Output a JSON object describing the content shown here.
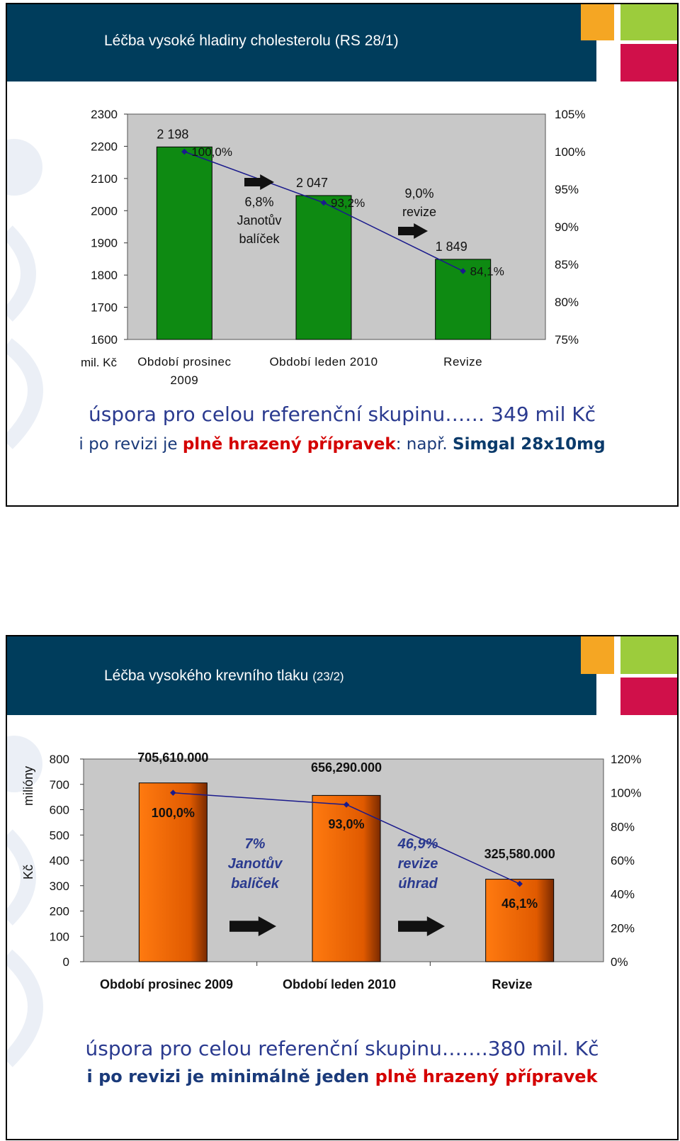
{
  "colors": {
    "header": "#003d5c",
    "tile_orange": "#f5a623",
    "tile_green": "#9ccc3c",
    "tile_red": "#d0104a",
    "bar_green": "#0e8a12",
    "bar_orange": "#f26a00",
    "line": "#1a1a8c",
    "plot_bg": "#c8c8c8"
  },
  "slide1": {
    "title": "Léčba vysoké hladiny cholesterolu (RS 28/1)",
    "chart_data": {
      "type": "bar",
      "categories": [
        "Období prosinec 2009",
        "Období leden 2010",
        "Revize"
      ],
      "category_lines": [
        [
          "Období prosinec",
          "2009"
        ],
        [
          "Období leden 2010"
        ],
        [
          "Revize"
        ]
      ],
      "values": [
        2198,
        2047,
        1849
      ],
      "value_labels": [
        "2 198",
        "2 047",
        "1 849"
      ],
      "percent_values": [
        100.0,
        93.2,
        84.1
      ],
      "percent_labels": [
        "100,0%",
        "93,2%",
        "84,1%"
      ],
      "ylim": [
        1600,
        2300
      ],
      "yticks": [
        2300,
        2200,
        2100,
        2000,
        1900,
        1800,
        1700,
        1600
      ],
      "y2lim": [
        75,
        105
      ],
      "y2ticks": [
        "105%",
        "100%",
        "95%",
        "90%",
        "85%",
        "80%",
        "75%"
      ],
      "ylabel": "mil. Kč",
      "annotations": [
        {
          "lines": [
            "6,8%",
            "Janotův",
            "balíček"
          ]
        },
        {
          "lines": [
            "9,0%",
            "revize"
          ]
        }
      ]
    },
    "summary": {
      "main": "úspora pro celou referenční skupinu…… 349 mil Kč"
    },
    "note": {
      "part1": "i po revizi je ",
      "part2": "plně hrazený přípravek",
      "part3": ": např. ",
      "part4": "Simgal 28x10mg"
    }
  },
  "slide2": {
    "title_main": "Léčba vysokého krevního tlaku ",
    "title_small": "(23/2)",
    "chart_data": {
      "type": "bar",
      "categories": [
        "Období prosinec 2009",
        "Období leden 2010",
        "Revize"
      ],
      "values": [
        705.61,
        656.29,
        325.58
      ],
      "value_labels": [
        "705,610.000",
        "656,290.000",
        "325,580.000"
      ],
      "percent_values": [
        100.0,
        93.0,
        46.1
      ],
      "percent_labels": [
        "100,0%",
        "93,0%",
        "46,1%"
      ],
      "ylim": [
        0,
        800
      ],
      "yticks": [
        800,
        700,
        600,
        500,
        400,
        300,
        200,
        100,
        0
      ],
      "y2lim": [
        0,
        120
      ],
      "y2ticks": [
        "120%",
        "100%",
        "80%",
        "60%",
        "40%",
        "20%",
        "0%"
      ],
      "ylabel_top": "milióny",
      "ylabel_bottom": "Kč",
      "annotations": [
        {
          "lines": [
            "7%",
            "Janotův",
            "balíček"
          ]
        },
        {
          "lines": [
            "46,9%",
            "revize",
            "úhrad"
          ]
        }
      ]
    },
    "summary": {
      "main": "úspora pro celou referenční skupinu…….380 mil. Kč"
    },
    "note": {
      "part1": "i po revizi je minimálně jeden ",
      "part2": "plně hrazený přípravek"
    }
  }
}
